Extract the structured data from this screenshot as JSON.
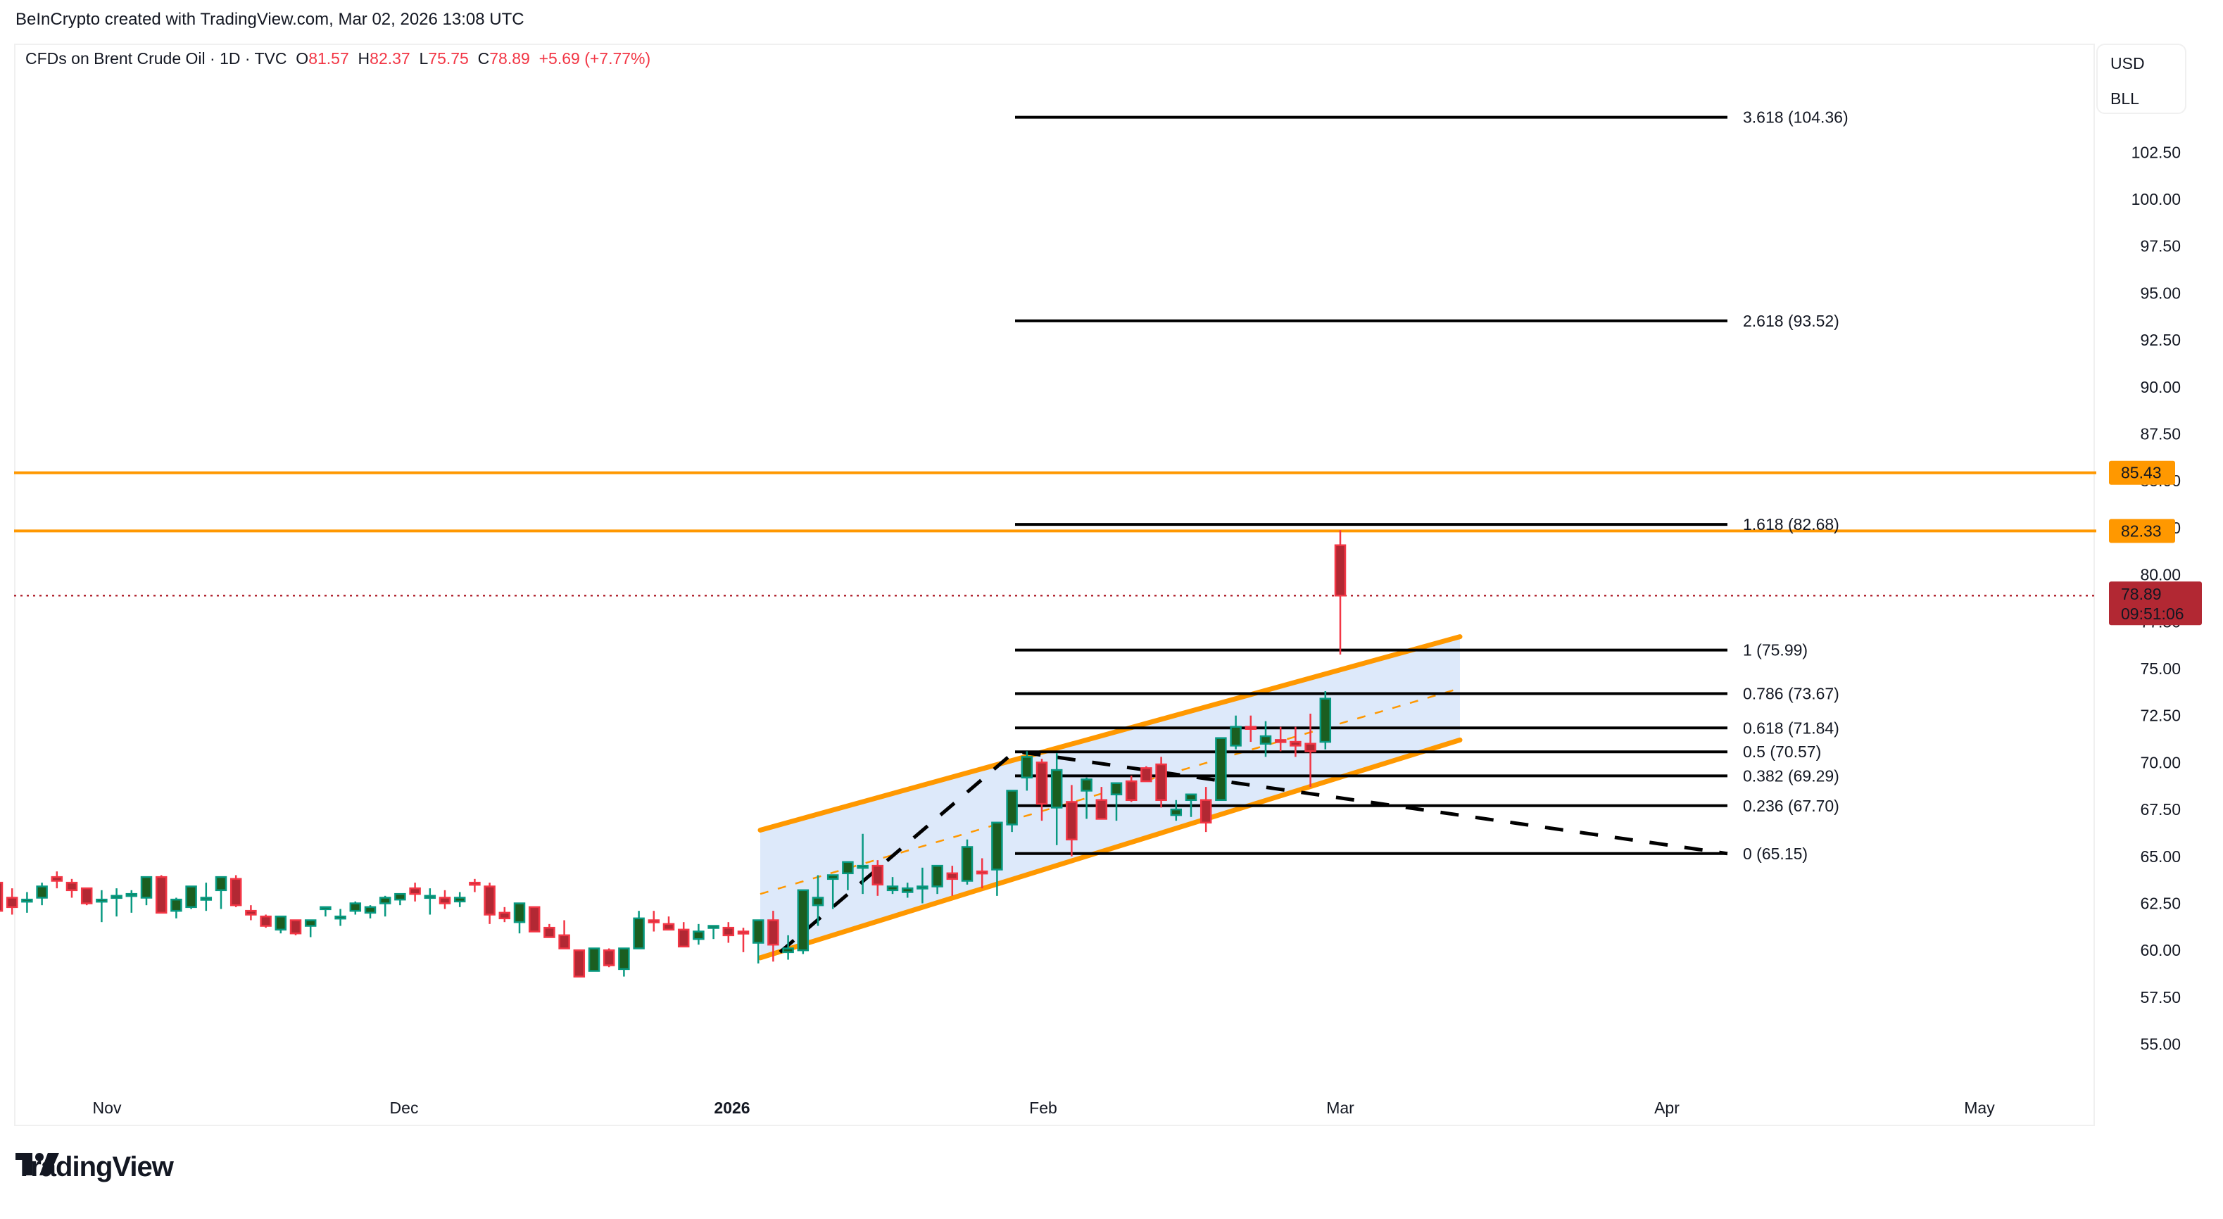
{
  "header": {
    "credit": "BeInCrypto created with TradingView.com, Mar 02, 2026 13:08 UTC"
  },
  "legend": {
    "symbol": "CFDs on Brent Crude Oil · 1D · TVC",
    "open_label": "O",
    "open": "81.57",
    "high_label": "H",
    "high": "82.37",
    "low_label": "L",
    "low": "75.75",
    "close_label": "C",
    "close": "78.89",
    "change": "+5.69 (+7.77%)"
  },
  "units": {
    "currency": "USD",
    "unit": "BLL"
  },
  "price_axis": {
    "ticks": [
      "102.50",
      "100.00",
      "97.50",
      "95.00",
      "92.50",
      "90.00",
      "87.50",
      "85.00",
      "82.50",
      "80.00",
      "77.50",
      "75.00",
      "72.50",
      "70.00",
      "67.50",
      "65.00",
      "62.50",
      "60.00",
      "57.50",
      "55.00"
    ],
    "tags": [
      {
        "value": "85.43",
        "price": 85.43,
        "color": "#ff9800",
        "text_color": "#131722"
      },
      {
        "value": "82.33",
        "price": 82.33,
        "color": "#ff9800",
        "text_color": "#131722"
      }
    ],
    "last_price": {
      "value": "78.89",
      "countdown": "09:51:06",
      "color": "#b22833"
    }
  },
  "time_axis": {
    "labels": [
      {
        "text": "Nov",
        "x": 152,
        "bold": false
      },
      {
        "text": "Dec",
        "x": 574,
        "bold": false
      },
      {
        "text": "2026",
        "x": 1040,
        "bold": true
      },
      {
        "text": "Feb",
        "x": 1482,
        "bold": false
      },
      {
        "text": "Mar",
        "x": 1904,
        "bold": false
      },
      {
        "text": "Apr",
        "x": 2368,
        "bold": false
      },
      {
        "text": "May",
        "x": 2812,
        "bold": false
      }
    ]
  },
  "footer": {
    "brand": "TradingView"
  },
  "colors": {
    "bull_body": "#1b5e20",
    "bull_border": "#089981",
    "bear_body": "#b22833",
    "bear_border": "#f23645",
    "channel": "#ff9800",
    "channel_fill": "#dbe8fa",
    "fib_line": "#000000",
    "horizontal": "#ff9800",
    "last_price_line": "#b22833"
  },
  "chart_data": {
    "type": "candlestick",
    "title": "CFDs on Brent Crude Oil · 1D · TVC",
    "ylabel": "USD / BLL",
    "ylim": [
      53.5,
      106
    ],
    "x_range": [
      "Oct 2025",
      "May 2026"
    ],
    "horizontal_levels": [
      85.43,
      82.33
    ],
    "fibonacci_extension": {
      "levels": [
        {
          "ratio": "0",
          "price": 65.15,
          "label": "0 (65.15)"
        },
        {
          "ratio": "0.236",
          "price": 67.7,
          "label": "0.236 (67.70)"
        },
        {
          "ratio": "0.382",
          "price": 69.29,
          "label": "0.382 (69.29)"
        },
        {
          "ratio": "0.5",
          "price": 70.57,
          "label": "0.5 (70.57)"
        },
        {
          "ratio": "0.618",
          "price": 71.84,
          "label": "0.618 (71.84)"
        },
        {
          "ratio": "0.786",
          "price": 73.67,
          "label": "0.786 (73.67)"
        },
        {
          "ratio": "1",
          "price": 75.99,
          "label": "1 (75.99)"
        },
        {
          "ratio": "1.618",
          "price": 82.68,
          "label": "1.618 (82.68)"
        },
        {
          "ratio": "2.618",
          "price": 93.52,
          "label": "2.618 (93.52)"
        },
        {
          "ratio": "3.618",
          "price": 104.36,
          "label": "3.618 (104.36)"
        }
      ]
    },
    "ascending_channel": {
      "upper": [
        [
          1080,
          66.4
        ],
        [
          2074,
          76.7
        ]
      ],
      "lower": [
        [
          1080,
          59.6
        ],
        [
          2074,
          71.2
        ]
      ]
    },
    "last": {
      "open": 81.57,
      "high": 82.37,
      "low": 75.75,
      "close": 78.89,
      "change": 5.69,
      "change_pct": 7.77
    },
    "candles": [
      [
        65.5,
        66.3,
        64.3,
        63.8
      ],
      [
        63.8,
        64.5,
        63.6,
        63.8
      ],
      [
        63.6,
        63.7,
        62.3,
        62.1
      ],
      [
        62.8,
        63.3,
        61.9,
        62.3
      ],
      [
        62.7,
        63.1,
        62.0,
        62.7
      ],
      [
        62.8,
        63.6,
        62.4,
        63.4
      ],
      [
        63.9,
        64.2,
        63.3,
        63.7
      ],
      [
        63.6,
        63.8,
        62.8,
        63.2
      ],
      [
        63.3,
        63.3,
        62.4,
        62.5
      ],
      [
        62.7,
        63.2,
        61.5,
        62.7
      ],
      [
        62.9,
        63.3,
        61.8,
        62.9
      ],
      [
        62.9,
        63.2,
        62.0,
        63.0
      ],
      [
        62.8,
        63.6,
        62.4,
        63.9
      ],
      [
        63.9,
        64.0,
        62.0,
        62.0
      ],
      [
        62.1,
        62.8,
        61.7,
        62.7
      ],
      [
        62.3,
        63.4,
        62.2,
        63.4
      ],
      [
        62.8,
        63.6,
        62.1,
        62.8
      ],
      [
        63.2,
        63.9,
        62.2,
        63.9
      ],
      [
        63.8,
        64.0,
        62.3,
        62.4
      ],
      [
        62.1,
        62.4,
        61.6,
        61.9
      ],
      [
        61.8,
        61.9,
        61.2,
        61.3
      ],
      [
        61.1,
        61.5,
        60.9,
        61.8
      ],
      [
        61.6,
        61.6,
        60.8,
        60.9
      ],
      [
        61.3,
        61.5,
        60.7,
        61.6
      ],
      [
        62.2,
        62.3,
        61.8,
        62.3
      ],
      [
        61.8,
        62.2,
        61.3,
        61.8
      ],
      [
        62.1,
        62.6,
        61.9,
        62.5
      ],
      [
        62.0,
        62.4,
        61.7,
        62.3
      ],
      [
        62.5,
        62.9,
        61.8,
        62.8
      ],
      [
        62.7,
        62.9,
        62.4,
        63.0
      ],
      [
        63.3,
        63.6,
        62.6,
        63.0
      ],
      [
        62.9,
        63.3,
        61.9,
        62.9
      ],
      [
        62.8,
        63.2,
        62.2,
        62.5
      ],
      [
        62.6,
        63.1,
        62.3,
        62.8
      ],
      [
        63.6,
        63.8,
        63.1,
        63.5
      ],
      [
        63.4,
        63.6,
        61.4,
        61.9
      ],
      [
        62.0,
        62.3,
        61.5,
        61.7
      ],
      [
        61.5,
        62.3,
        60.9,
        62.5
      ],
      [
        62.3,
        62.3,
        61.0,
        61.0
      ],
      [
        61.2,
        61.4,
        60.7,
        60.7
      ],
      [
        60.8,
        61.6,
        60.2,
        60.1
      ],
      [
        60.0,
        60.0,
        58.8,
        58.6
      ],
      [
        58.9,
        60.1,
        58.9,
        60.1
      ],
      [
        60.0,
        60.1,
        59.1,
        59.2
      ],
      [
        59.0,
        60.0,
        58.6,
        60.1
      ],
      [
        60.1,
        62.1,
        60.1,
        61.7
      ],
      [
        61.6,
        62.1,
        61.0,
        61.5
      ],
      [
        61.4,
        61.8,
        61.2,
        61.1
      ],
      [
        61.1,
        61.5,
        60.4,
        60.2
      ],
      [
        60.6,
        61.4,
        60.3,
        61.0
      ],
      [
        61.3,
        61.3,
        60.6,
        61.3
      ],
      [
        61.2,
        61.5,
        60.4,
        60.8
      ],
      [
        61.0,
        61.2,
        59.9,
        60.9
      ],
      [
        60.4,
        61.6,
        59.3,
        61.6
      ],
      [
        61.6,
        62.1,
        59.4,
        60.3
      ],
      [
        59.9,
        60.8,
        59.5,
        60.1
      ],
      [
        60.0,
        63.1,
        59.8,
        63.2
      ],
      [
        62.4,
        64.0,
        61.3,
        62.8
      ],
      [
        63.8,
        64.0,
        62.2,
        64.0
      ],
      [
        64.1,
        64.5,
        63.2,
        64.7
      ],
      [
        64.5,
        66.2,
        63.0,
        64.5
      ],
      [
        64.5,
        64.8,
        62.9,
        63.5
      ],
      [
        63.2,
        63.9,
        63.0,
        63.4
      ],
      [
        63.1,
        63.6,
        62.8,
        63.3
      ],
      [
        63.4,
        64.4,
        62.5,
        63.4
      ],
      [
        63.4,
        64.5,
        63.0,
        64.5
      ],
      [
        64.1,
        64.5,
        62.9,
        63.8
      ],
      [
        63.7,
        65.9,
        63.5,
        65.5
      ],
      [
        64.2,
        64.9,
        63.3,
        64.1
      ],
      [
        64.3,
        66.3,
        62.9,
        66.8
      ],
      [
        66.7,
        68.5,
        66.3,
        68.5
      ],
      [
        69.2,
        70.6,
        68.5,
        70.3
      ],
      [
        70.0,
        70.2,
        66.9,
        67.8
      ],
      [
        67.6,
        70.5,
        65.6,
        69.6
      ],
      [
        67.9,
        68.8,
        65.0,
        65.9
      ],
      [
        68.5,
        69.2,
        67.0,
        69.1
      ],
      [
        68.0,
        68.7,
        67.1,
        67.0
      ],
      [
        68.3,
        68.8,
        66.9,
        68.9
      ],
      [
        69.0,
        69.3,
        67.9,
        68.0
      ],
      [
        69.7,
        69.8,
        69.2,
        69.0
      ],
      [
        69.9,
        70.3,
        67.6,
        68.0
      ],
      [
        67.2,
        68.0,
        66.9,
        67.5
      ],
      [
        68.0,
        68.2,
        67.1,
        68.3
      ],
      [
        68.0,
        68.7,
        66.3,
        66.8
      ],
      [
        68.0,
        71.3,
        68.0,
        71.3
      ],
      [
        70.9,
        72.5,
        70.7,
        71.9
      ],
      [
        71.9,
        72.5,
        71.1,
        71.8
      ],
      [
        71.0,
        72.2,
        70.3,
        71.4
      ],
      [
        71.2,
        71.9,
        70.6,
        71.1
      ],
      [
        71.1,
        71.9,
        70.3,
        70.9
      ],
      [
        71.0,
        72.6,
        68.7,
        70.6
      ],
      [
        71.1,
        73.8,
        70.7,
        73.4
      ],
      [
        81.57,
        82.37,
        75.75,
        78.89
      ]
    ]
  }
}
